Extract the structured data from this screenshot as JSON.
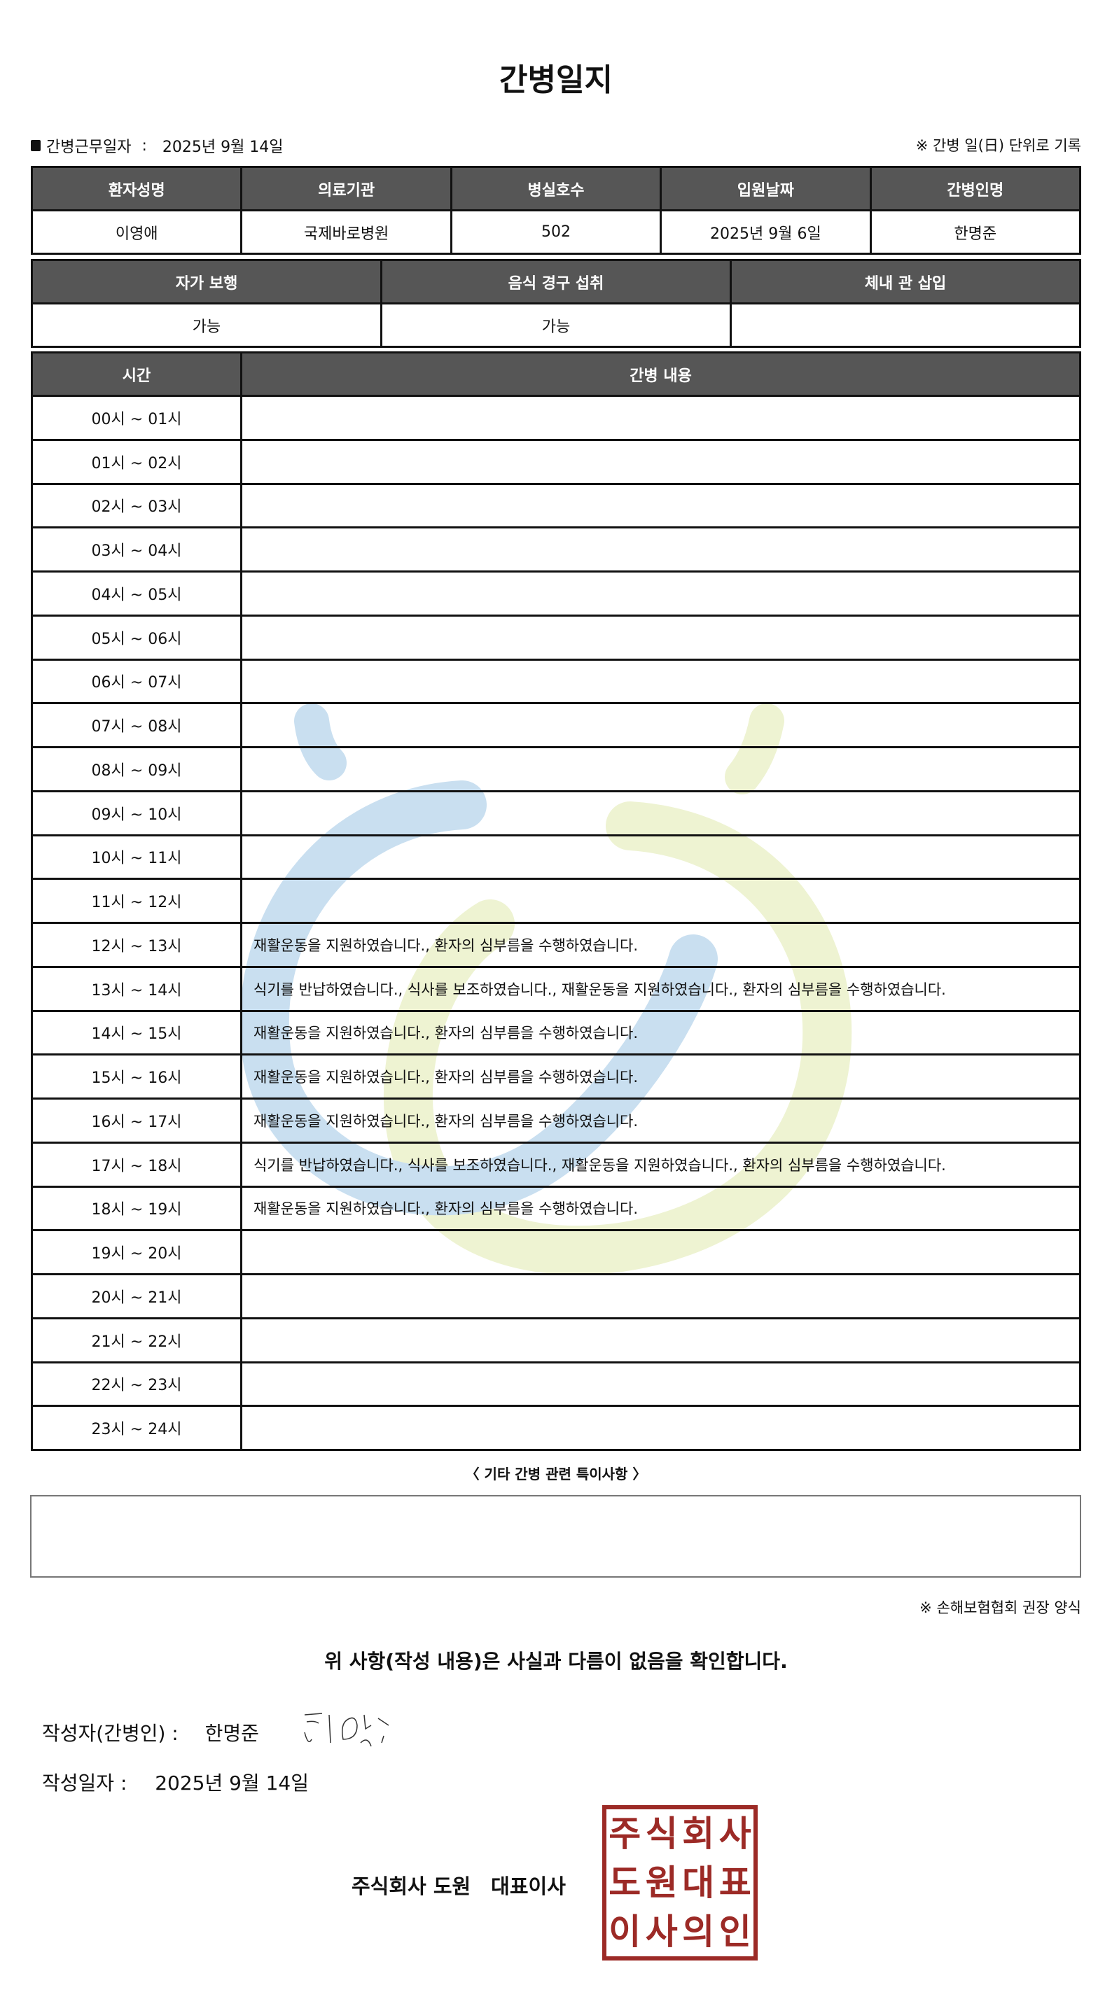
{
  "title": "간병일지",
  "work_date_label": "간병근무일자",
  "work_date": "2025년 9월 14일",
  "record_note": "※ 간병 일(日) 단위로 기록",
  "patient_table": {
    "headers": [
      "환자성명",
      "의료기관",
      "병실호수",
      "입원날짜",
      "간병인명"
    ],
    "values": [
      "이영애",
      "국제바로병원",
      "502",
      "2025년 9월 6일",
      "한명준"
    ]
  },
  "status_table": {
    "headers": [
      "자가 보행",
      "음식 경구 섭취",
      "체내 관 삽입"
    ],
    "values": [
      "가능",
      "가능",
      ""
    ]
  },
  "log_table": {
    "headers": [
      "시간",
      "간병 내용"
    ],
    "rows": [
      {
        "time": "00시 ~ 01시",
        "content": ""
      },
      {
        "time": "01시 ~ 02시",
        "content": ""
      },
      {
        "time": "02시 ~ 03시",
        "content": ""
      },
      {
        "time": "03시 ~ 04시",
        "content": ""
      },
      {
        "time": "04시 ~ 05시",
        "content": ""
      },
      {
        "time": "05시 ~ 06시",
        "content": ""
      },
      {
        "time": "06시 ~ 07시",
        "content": ""
      },
      {
        "time": "07시 ~ 08시",
        "content": ""
      },
      {
        "time": "08시 ~ 09시",
        "content": ""
      },
      {
        "time": "09시 ~ 10시",
        "content": ""
      },
      {
        "time": "10시 ~ 11시",
        "content": ""
      },
      {
        "time": "11시 ~ 12시",
        "content": ""
      },
      {
        "time": "12시 ~ 13시",
        "content": "재활운동을 지원하였습니다., 환자의 심부름을 수행하였습니다."
      },
      {
        "time": "13시 ~ 14시",
        "content": "식기를 반납하였습니다., 식사를 보조하였습니다., 재활운동을 지원하였습니다., 환자의 심부름을 수행하였습니다."
      },
      {
        "time": "14시 ~ 15시",
        "content": "재활운동을 지원하였습니다., 환자의 심부름을 수행하였습니다."
      },
      {
        "time": "15시 ~ 16시",
        "content": "재활운동을 지원하였습니다., 환자의 심부름을 수행하였습니다."
      },
      {
        "time": "16시 ~ 17시",
        "content": "재활운동을 지원하였습니다., 환자의 심부름을 수행하였습니다."
      },
      {
        "time": "17시 ~ 18시",
        "content": "식기를 반납하였습니다., 식사를 보조하였습니다., 재활운동을 지원하였습니다., 환자의 심부름을 수행하였습니다."
      },
      {
        "time": "18시 ~ 19시",
        "content": "재활운동을 지원하였습니다., 환자의 심부름을 수행하였습니다."
      },
      {
        "time": "19시 ~ 20시",
        "content": ""
      },
      {
        "time": "20시 ~ 21시",
        "content": ""
      },
      {
        "time": "21시 ~ 22시",
        "content": ""
      },
      {
        "time": "22시 ~ 23시",
        "content": ""
      },
      {
        "time": "23시 ~ 24시",
        "content": ""
      }
    ]
  },
  "notes_label": "〈 기타 간병 관련 특이사항 〉",
  "notes": "",
  "form_note": "※ 손해보험협회 권장 양식",
  "confirm_text": "위 사항(작성 내용)은 사실과 다름이 없음을 확인합니다.",
  "writer_label": "작성자(간병인) :",
  "writer_name": "한명준",
  "date_label": "작성일자 :",
  "date_value": "2025년 9월 14일",
  "company": "주식회사 도원　대표이사",
  "stamp_text": "주식회사도원대표이사의인",
  "colors": {
    "header_bg": "#565656",
    "stamp": "#9c2a26",
    "watermark_blue": "#c9dff0",
    "watermark_green": "#eef3d2"
  }
}
